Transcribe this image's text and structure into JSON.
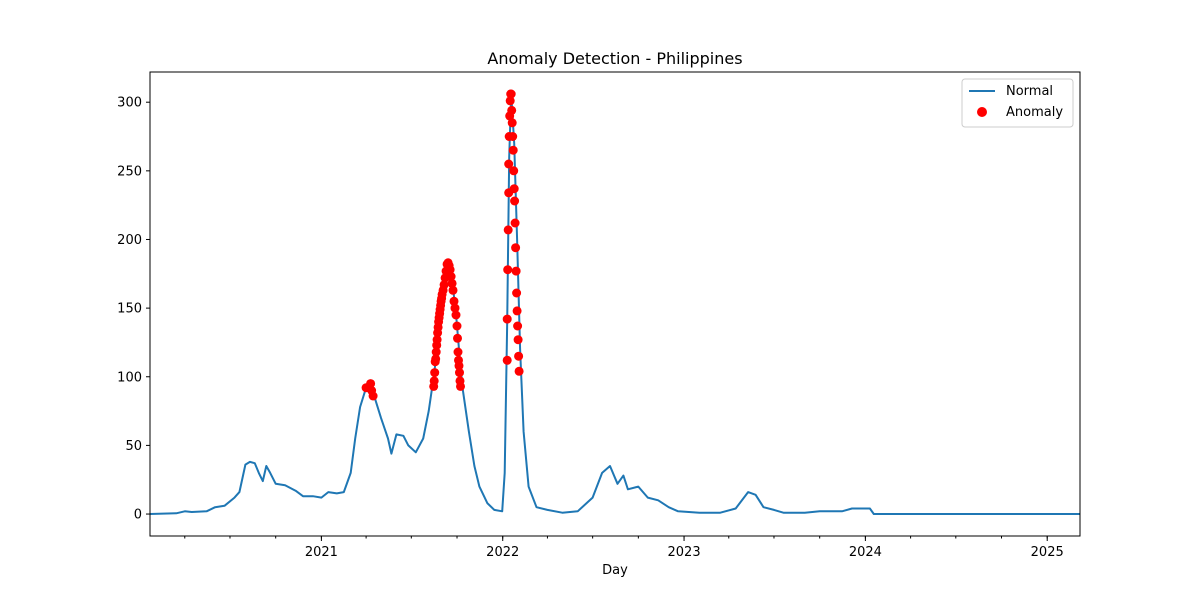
{
  "chart_data": {
    "type": "line",
    "title": "Anomaly Detection - Philippines",
    "xlabel": "Day",
    "ylabel": "",
    "xlim": [
      "2020-01-22",
      "2025-03-08"
    ],
    "ylim": [
      -16,
      322
    ],
    "x_ticks": [
      {
        "date": "2021-01-01",
        "label": "2021"
      },
      {
        "date": "2022-01-01",
        "label": "2022"
      },
      {
        "date": "2023-01-01",
        "label": "2023"
      },
      {
        "date": "2024-01-01",
        "label": "2024"
      },
      {
        "date": "2025-01-01",
        "label": "2025"
      }
    ],
    "y_ticks": [
      0,
      50,
      100,
      150,
      200,
      250,
      300
    ],
    "legend": {
      "position": "top-right",
      "entries": [
        {
          "label": "Normal",
          "marker": "line",
          "color": "#1f77b4"
        },
        {
          "label": "Anomaly",
          "marker": "dot",
          "color": "#ff0000"
        }
      ]
    },
    "grid": false,
    "series": [
      {
        "name": "Normal",
        "color": "#1f77b4",
        "points": [
          [
            "2020-01-22",
            0
          ],
          [
            "2020-03-15",
            0.5
          ],
          [
            "2020-04-01",
            2
          ],
          [
            "2020-04-15",
            1.5
          ],
          [
            "2020-05-15",
            2
          ],
          [
            "2020-06-01",
            5
          ],
          [
            "2020-06-20",
            6
          ],
          [
            "2020-07-10",
            12
          ],
          [
            "2020-07-20",
            16
          ],
          [
            "2020-08-01",
            36
          ],
          [
            "2020-08-10",
            38
          ],
          [
            "2020-08-20",
            37
          ],
          [
            "2020-08-28",
            30
          ],
          [
            "2020-09-05",
            24
          ],
          [
            "2020-09-12",
            35
          ],
          [
            "2020-09-20",
            30
          ],
          [
            "2020-10-01",
            22
          ],
          [
            "2020-10-20",
            21
          ],
          [
            "2020-11-10",
            17
          ],
          [
            "2020-11-25",
            13
          ],
          [
            "2020-12-15",
            13
          ],
          [
            "2021-01-01",
            12
          ],
          [
            "2021-01-15",
            16
          ],
          [
            "2021-02-01",
            15
          ],
          [
            "2021-02-15",
            16
          ],
          [
            "2021-03-01",
            30
          ],
          [
            "2021-03-10",
            55
          ],
          [
            "2021-03-20",
            78
          ],
          [
            "2021-04-01",
            92
          ],
          [
            "2021-04-10",
            90
          ],
          [
            "2021-04-18",
            85
          ],
          [
            "2021-05-01",
            70
          ],
          [
            "2021-05-15",
            55
          ],
          [
            "2021-05-22",
            44
          ],
          [
            "2021-06-01",
            58
          ],
          [
            "2021-06-15",
            57
          ],
          [
            "2021-06-25",
            50
          ],
          [
            "2021-07-10",
            45
          ],
          [
            "2021-07-25",
            55
          ],
          [
            "2021-08-05",
            75
          ],
          [
            "2021-08-15",
            100
          ],
          [
            "2021-08-25",
            128
          ],
          [
            "2021-09-05",
            155
          ],
          [
            "2021-09-12",
            182
          ],
          [
            "2021-09-20",
            172
          ],
          [
            "2021-09-28",
            150
          ],
          [
            "2021-10-05",
            120
          ],
          [
            "2021-10-12",
            92
          ],
          [
            "2021-10-25",
            60
          ],
          [
            "2021-11-05",
            35
          ],
          [
            "2021-11-15",
            20
          ],
          [
            "2021-12-01",
            8
          ],
          [
            "2021-12-15",
            3
          ],
          [
            "2021-12-31",
            2
          ],
          [
            "2022-01-05",
            30
          ],
          [
            "2022-01-10",
            140
          ],
          [
            "2022-01-14",
            260
          ],
          [
            "2022-01-18",
            306
          ],
          [
            "2022-01-24",
            270
          ],
          [
            "2022-01-30",
            200
          ],
          [
            "2022-02-05",
            120
          ],
          [
            "2022-02-12",
            60
          ],
          [
            "2022-02-22",
            20
          ],
          [
            "2022-03-10",
            5
          ],
          [
            "2022-04-01",
            3
          ],
          [
            "2022-05-01",
            1
          ],
          [
            "2022-06-01",
            2
          ],
          [
            "2022-07-01",
            12
          ],
          [
            "2022-07-20",
            30
          ],
          [
            "2022-08-05",
            35
          ],
          [
            "2022-08-20",
            22
          ],
          [
            "2022-09-01",
            28
          ],
          [
            "2022-09-10",
            18
          ],
          [
            "2022-10-01",
            20
          ],
          [
            "2022-10-20",
            12
          ],
          [
            "2022-11-10",
            10
          ],
          [
            "2022-12-01",
            5
          ],
          [
            "2022-12-20",
            2
          ],
          [
            "2023-02-01",
            1
          ],
          [
            "2023-03-15",
            1
          ],
          [
            "2023-04-15",
            4
          ],
          [
            "2023-05-10",
            16
          ],
          [
            "2023-05-25",
            14
          ],
          [
            "2023-06-10",
            5
          ],
          [
            "2023-07-01",
            3
          ],
          [
            "2023-07-20",
            1
          ],
          [
            "2023-09-01",
            1
          ],
          [
            "2023-10-01",
            2
          ],
          [
            "2023-11-15",
            2
          ],
          [
            "2023-12-05",
            4
          ],
          [
            "2024-01-10",
            4
          ],
          [
            "2024-01-18",
            0
          ],
          [
            "2025-03-08",
            0
          ]
        ]
      },
      {
        "name": "Anomaly",
        "color": "#ff0000",
        "points": [
          [
            "2021-04-01",
            92
          ],
          [
            "2021-04-06",
            92
          ],
          [
            "2021-04-10",
            95
          ],
          [
            "2021-04-12",
            90
          ],
          [
            "2021-04-15",
            86
          ],
          [
            "2021-08-15",
            93
          ],
          [
            "2021-08-16",
            97
          ],
          [
            "2021-08-17",
            103
          ],
          [
            "2021-08-18",
            111
          ],
          [
            "2021-08-19",
            113
          ],
          [
            "2021-08-20",
            118
          ],
          [
            "2021-08-21",
            123
          ],
          [
            "2021-08-22",
            127
          ],
          [
            "2021-08-23",
            132
          ],
          [
            "2021-08-24",
            136
          ],
          [
            "2021-08-25",
            140
          ],
          [
            "2021-08-26",
            143
          ],
          [
            "2021-08-27",
            146
          ],
          [
            "2021-08-28",
            149
          ],
          [
            "2021-08-29",
            152
          ],
          [
            "2021-08-30",
            155
          ],
          [
            "2021-08-31",
            157
          ],
          [
            "2021-09-01",
            160
          ],
          [
            "2021-09-03",
            163
          ],
          [
            "2021-09-05",
            167
          ],
          [
            "2021-09-07",
            172
          ],
          [
            "2021-09-09",
            177
          ],
          [
            "2021-09-11",
            182
          ],
          [
            "2021-09-13",
            183
          ],
          [
            "2021-09-15",
            181
          ],
          [
            "2021-09-17",
            178
          ],
          [
            "2021-09-19",
            173
          ],
          [
            "2021-09-21",
            168
          ],
          [
            "2021-09-23",
            163
          ],
          [
            "2021-09-25",
            155
          ],
          [
            "2021-09-27",
            150
          ],
          [
            "2021-09-29",
            145
          ],
          [
            "2021-10-01",
            137
          ],
          [
            "2021-10-02",
            128
          ],
          [
            "2021-10-03",
            118
          ],
          [
            "2021-10-04",
            112
          ],
          [
            "2021-10-05",
            108
          ],
          [
            "2021-10-06",
            103
          ],
          [
            "2021-10-07",
            97
          ],
          [
            "2021-10-08",
            93
          ],
          [
            "2022-01-10",
            112
          ],
          [
            "2022-01-10",
            142
          ],
          [
            "2022-01-11",
            178
          ],
          [
            "2022-01-12",
            207
          ],
          [
            "2022-01-13",
            234
          ],
          [
            "2022-01-13",
            255
          ],
          [
            "2022-01-14",
            275
          ],
          [
            "2022-01-15",
            290
          ],
          [
            "2022-01-16",
            301
          ],
          [
            "2022-01-17",
            306
          ],
          [
            "2022-01-18",
            306
          ],
          [
            "2022-01-19",
            294
          ],
          [
            "2022-01-20",
            285
          ],
          [
            "2022-01-21",
            275
          ],
          [
            "2022-01-22",
            265
          ],
          [
            "2022-01-23",
            250
          ],
          [
            "2022-01-24",
            237
          ],
          [
            "2022-01-25",
            228
          ],
          [
            "2022-01-26",
            212
          ],
          [
            "2022-01-27",
            194
          ],
          [
            "2022-01-28",
            177
          ],
          [
            "2022-01-29",
            161
          ],
          [
            "2022-01-30",
            148
          ],
          [
            "2022-01-31",
            137
          ],
          [
            "2022-02-01",
            127
          ],
          [
            "2022-02-02",
            115
          ],
          [
            "2022-02-03",
            104
          ]
        ]
      }
    ]
  }
}
